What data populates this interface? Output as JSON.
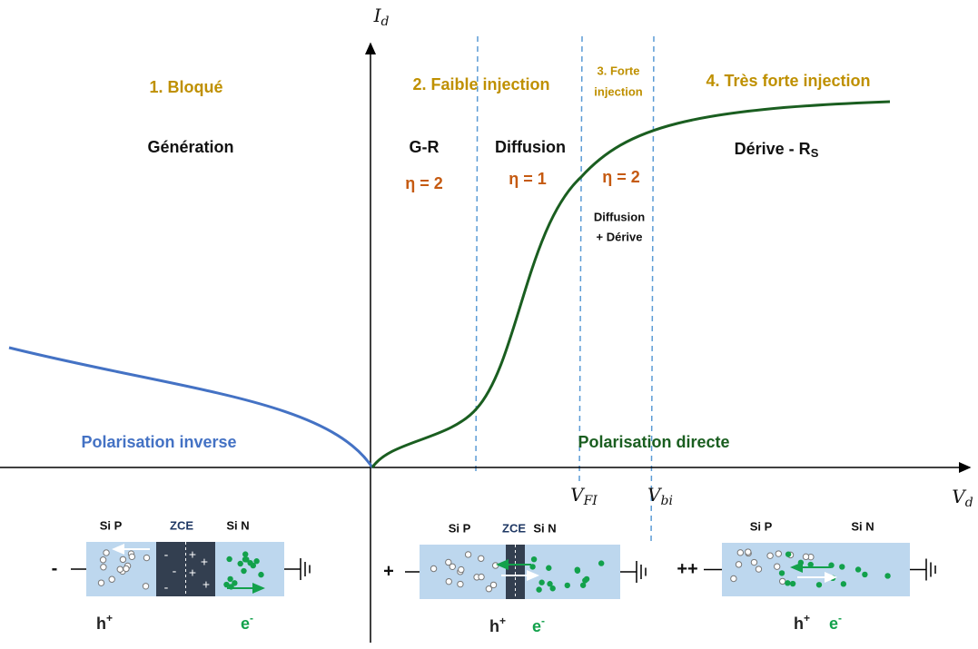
{
  "axes": {
    "y_label": {
      "main": "I",
      "sub": "d"
    },
    "x_label": {
      "main": "V",
      "sub": "d"
    },
    "v_fi": {
      "main": "V",
      "sub": "FI"
    },
    "v_bi": {
      "main": "V",
      "sub": "bi"
    }
  },
  "regions": [
    {
      "title": [
        "1. Bloqué"
      ]
    },
    {
      "title": [
        "2. Faible injection"
      ]
    },
    {
      "title": [
        "3. Forte",
        "injection"
      ]
    },
    {
      "title": [
        "4. Très forte injection"
      ]
    }
  ],
  "mechanisms": {
    "generation": "Génération",
    "gr": "G-R",
    "diffusion": "Diffusion",
    "drift": {
      "main": "Dérive - R",
      "sub": "S"
    },
    "diffusion_drift": [
      "Diffusion",
      "+ Dérive"
    ]
  },
  "ideality": [
    "η = 2",
    "η = 1",
    "η = 2"
  ],
  "polarisation": {
    "reverse": "Polarisation inverse",
    "forward": "Polarisation directe"
  },
  "diodes": [
    {
      "bias": "-",
      "p": "Si P",
      "zce": "ZCE",
      "n": "Si N",
      "holes": {
        "main": "h",
        "sup": "+"
      },
      "electrons": {
        "main": "e",
        "sup": "-"
      }
    },
    {
      "bias": "+",
      "p": "Si P",
      "zce": "ZCE",
      "n": "Si N",
      "holes": {
        "main": "h",
        "sup": "+"
      },
      "electrons": {
        "main": "e",
        "sup": "-"
      }
    },
    {
      "bias": "++",
      "p": "Si P",
      "n": "Si N",
      "holes": {
        "main": "h",
        "sup": "+"
      },
      "electrons": {
        "main": "e",
        "sup": "-"
      }
    }
  ]
}
